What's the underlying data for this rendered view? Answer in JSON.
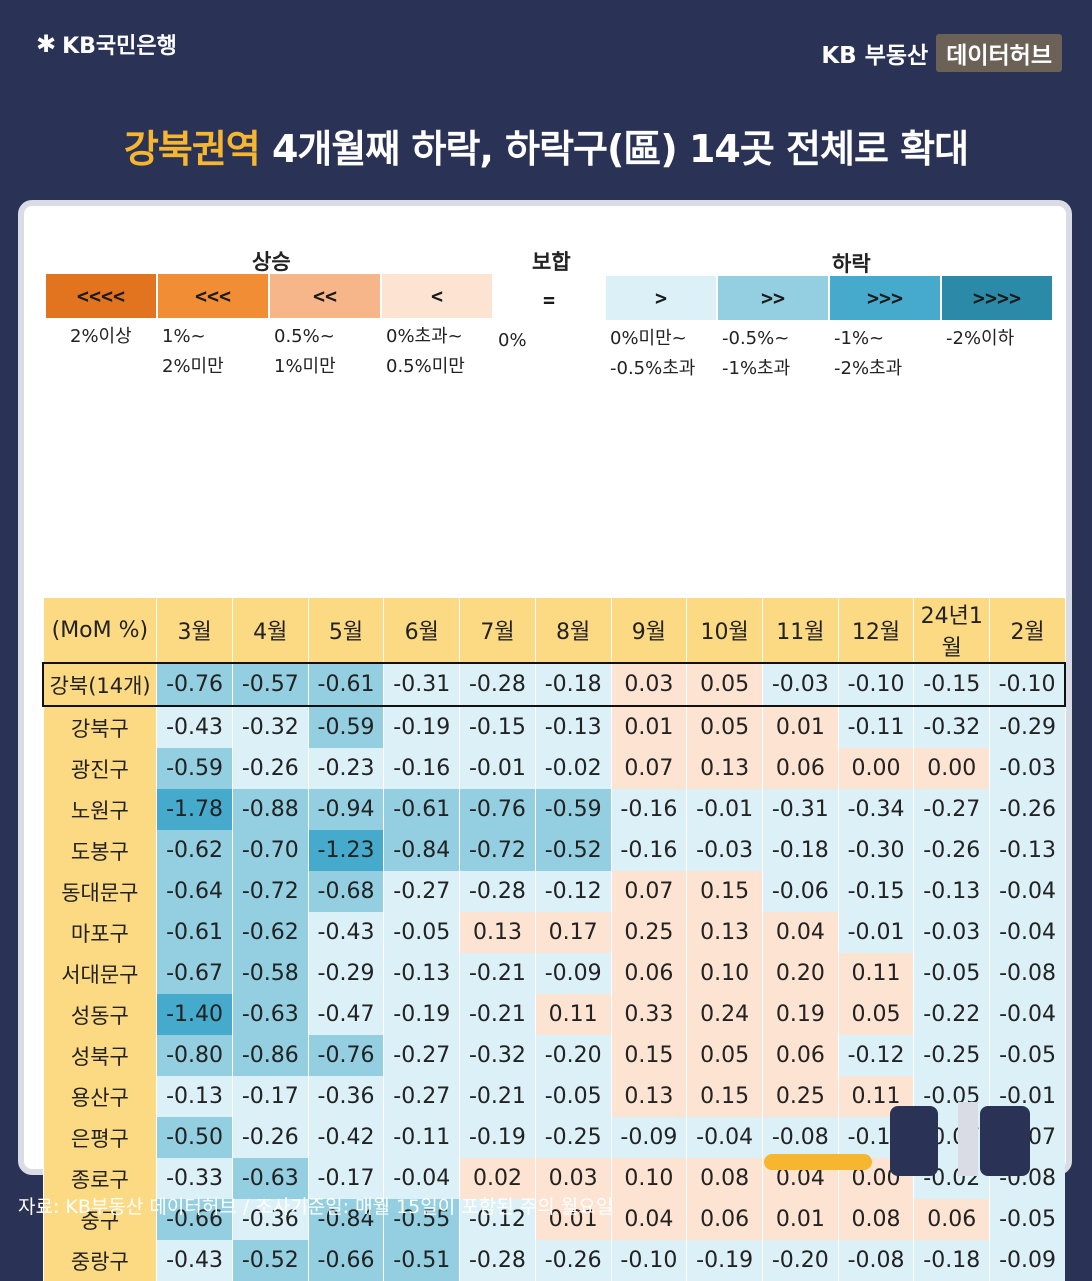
{
  "header": {
    "bank_name": "KB국민은행",
    "brand": "KB 부동산",
    "brand_tag": "데이터허브",
    "title_highlight": "강북권역",
    "title_rest": " 4개월째 하락, 하락구(區) 14곳 전체로 확대"
  },
  "legend": {
    "groups": {
      "rise": "상승",
      "flat": "보합",
      "fall": "하락"
    },
    "items": [
      {
        "symbol": "<<<<",
        "desc": "2%이상",
        "color": "#e2731f"
      },
      {
        "symbol": "<<<",
        "desc": "1%~\n2%미만",
        "color": "#f08d35"
      },
      {
        "symbol": "<<",
        "desc": "0.5%~\n1%미만",
        "color": "#f7b68a"
      },
      {
        "symbol": "<",
        "desc": "0%초과~\n0.5%미만",
        "color": "#fde3d1"
      },
      {
        "symbol": "=",
        "desc": "0%",
        "color": "#ffffff"
      },
      {
        "symbol": ">",
        "desc": "0%미만~\n-0.5%초과",
        "color": "#dcf0f7"
      },
      {
        "symbol": ">>",
        "desc": "-0.5%~\n-1%초과",
        "color": "#93cfe0"
      },
      {
        "symbol": ">>>",
        "desc": "-1%~\n-2%초과",
        "color": "#45aacb"
      },
      {
        "symbol": ">>>>",
        "desc": "-2%이하",
        "color": "#2a8aa8"
      }
    ]
  },
  "chart_data": {
    "type": "table",
    "corner_label": "(MoM %)",
    "columns": [
      "3월",
      "4월",
      "5월",
      "6월",
      "7월",
      "8월",
      "9월",
      "10월",
      "11월",
      "12월",
      "24년1월",
      "2월"
    ],
    "rows": [
      {
        "name": "강북(14개)",
        "values": [
          -0.76,
          -0.57,
          -0.61,
          -0.31,
          -0.28,
          -0.18,
          0.03,
          0.05,
          -0.03,
          -0.1,
          -0.15,
          -0.1
        ]
      },
      {
        "name": "강북구",
        "values": [
          -0.43,
          -0.32,
          -0.59,
          -0.19,
          -0.15,
          -0.13,
          0.01,
          0.05,
          0.01,
          -0.11,
          -0.32,
          -0.29
        ]
      },
      {
        "name": "광진구",
        "values": [
          -0.59,
          -0.26,
          -0.23,
          -0.16,
          -0.01,
          -0.02,
          0.07,
          0.13,
          0.06,
          0.0,
          -0.0,
          -0.03
        ]
      },
      {
        "name": "노원구",
        "values": [
          -1.78,
          -0.88,
          -0.94,
          -0.61,
          -0.76,
          -0.59,
          -0.16,
          -0.01,
          -0.31,
          -0.34,
          -0.27,
          -0.26
        ]
      },
      {
        "name": "도봉구",
        "values": [
          -0.62,
          -0.7,
          -1.23,
          -0.84,
          -0.72,
          -0.52,
          -0.16,
          -0.03,
          -0.18,
          -0.3,
          -0.26,
          -0.13
        ]
      },
      {
        "name": "동대문구",
        "values": [
          -0.64,
          -0.72,
          -0.68,
          -0.27,
          -0.28,
          -0.12,
          0.07,
          0.15,
          -0.06,
          -0.15,
          -0.13,
          -0.04
        ]
      },
      {
        "name": "마포구",
        "values": [
          -0.61,
          -0.62,
          -0.43,
          -0.05,
          0.13,
          0.17,
          0.25,
          0.13,
          0.04,
          -0.01,
          -0.03,
          -0.04
        ]
      },
      {
        "name": "서대문구",
        "values": [
          -0.67,
          -0.58,
          -0.29,
          -0.13,
          -0.21,
          -0.09,
          0.06,
          0.1,
          0.2,
          0.11,
          -0.05,
          -0.08
        ]
      },
      {
        "name": "성동구",
        "values": [
          -1.4,
          -0.63,
          -0.47,
          -0.19,
          -0.21,
          0.11,
          0.33,
          0.24,
          0.19,
          0.05,
          -0.22,
          -0.04
        ]
      },
      {
        "name": "성북구",
        "values": [
          -0.8,
          -0.86,
          -0.76,
          -0.27,
          -0.32,
          -0.2,
          0.15,
          0.05,
          0.06,
          -0.12,
          -0.25,
          -0.05
        ]
      },
      {
        "name": "용산구",
        "values": [
          -0.13,
          -0.17,
          -0.36,
          -0.27,
          -0.21,
          -0.05,
          0.13,
          0.15,
          0.25,
          0.11,
          -0.05,
          -0.01
        ]
      },
      {
        "name": "은평구",
        "values": [
          -0.5,
          -0.26,
          -0.42,
          -0.11,
          -0.19,
          -0.25,
          -0.09,
          -0.04,
          -0.08,
          -0.18,
          -0.07,
          -0.07
        ]
      },
      {
        "name": "종로구",
        "values": [
          -0.33,
          -0.63,
          -0.17,
          -0.04,
          0.02,
          0.03,
          0.1,
          0.08,
          0.04,
          0.0,
          -0.02,
          -0.08
        ]
      },
      {
        "name": "중구",
        "values": [
          -0.66,
          -0.36,
          -0.84,
          -0.55,
          -0.12,
          0.01,
          0.04,
          0.06,
          0.01,
          0.08,
          0.06,
          -0.05
        ]
      },
      {
        "name": "중랑구",
        "values": [
          -0.43,
          -0.52,
          -0.66,
          -0.51,
          -0.28,
          -0.26,
          -0.1,
          -0.19,
          -0.2,
          -0.08,
          -0.18,
          -0.09
        ]
      }
    ]
  },
  "footer": "자료: KB부동산 데이터허브 / 조사기준일: 매월 15일이 포함된 주의 월요일"
}
